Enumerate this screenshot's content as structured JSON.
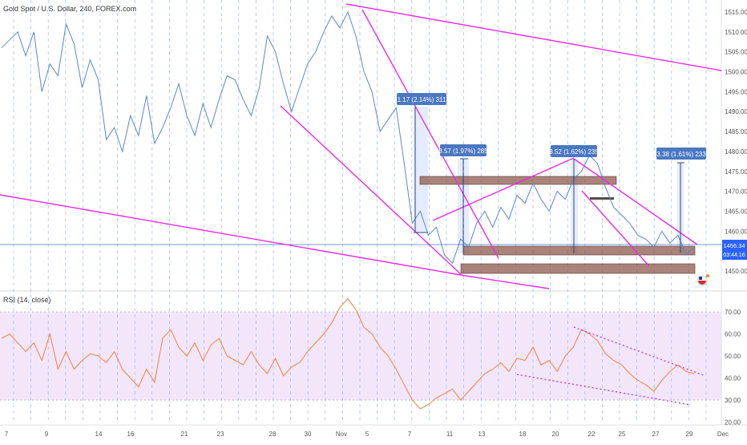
{
  "chart_data": {
    "type": "line",
    "title": "Gold Spot / U.S. Dollar, 240, FOREX.com",
    "price_panel": {
      "y_ticks": [
        "1515.00",
        "1510.00",
        "1505.00",
        "1500.00",
        "1495.00",
        "1490.00",
        "1485.00",
        "1480.00",
        "1475.00",
        "1470.00",
        "1465.00",
        "1460.00",
        "1455.00",
        "1450.00"
      ],
      "ylim": [
        1448,
        1517
      ],
      "current_price": "1456.34",
      "countdown": "03:44:16",
      "series": [
        {
          "values": [
            1506,
            1508,
            1510,
            1504,
            1510,
            1495,
            1502,
            1499,
            1512,
            1507,
            1496,
            1503,
            1498,
            1483,
            1486,
            1480,
            1489,
            1484,
            1494,
            1482,
            1486,
            1491,
            1497,
            1489,
            1484,
            1492,
            1486,
            1493,
            1499,
            1498,
            1493,
            1489,
            1496,
            1509,
            1505,
            1497,
            1490,
            1496,
            1502,
            1505,
            1510,
            1514,
            1511,
            1515,
            1509,
            1500,
            1495,
            1485,
            1488,
            1491,
            1477,
            1462,
            1465,
            1459,
            1461,
            1454,
            1452,
            1458,
            1456,
            1462,
            1465,
            1461,
            1466,
            1463,
            1469,
            1467,
            1472,
            1468,
            1465,
            1470,
            1468,
            1473,
            1475,
            1479,
            1477,
            1471,
            1466,
            1464,
            1462,
            1459,
            1458,
            1456,
            1460,
            1457,
            1459,
            1454,
            1456
          ]
        }
      ],
      "measurements": [
        "31.17 (2.14%) 3117",
        "28.57 (1.97%) 2857",
        "23.52 (1.62%) 2352",
        "23.38 (1.61%) 2338"
      ]
    },
    "rsi_panel": {
      "label": "RSI (14, close)",
      "y_ticks": [
        "70.00",
        "60.00",
        "50.00",
        "40.00",
        "30.00",
        "20.00"
      ],
      "ylim": [
        18,
        78
      ],
      "series": [
        {
          "values": [
            58,
            60,
            56,
            52,
            56,
            48,
            60,
            44,
            52,
            44,
            48,
            51,
            50,
            47,
            52,
            44,
            40,
            36,
            44,
            38,
            58,
            62,
            54,
            50,
            56,
            48,
            55,
            58,
            50,
            48,
            46,
            52,
            46,
            42,
            49,
            41,
            45,
            47,
            52,
            56,
            60,
            65,
            72,
            76,
            71,
            63,
            60,
            54,
            50,
            44,
            37,
            30,
            26,
            28,
            31,
            33,
            35,
            30,
            34,
            38,
            42,
            44,
            47,
            43,
            49,
            48,
            54,
            46,
            48,
            43,
            50,
            54,
            62,
            60,
            57,
            51,
            48,
            46,
            42,
            39,
            37,
            34,
            39,
            43,
            46,
            43,
            42
          ]
        }
      ]
    },
    "x_ticks": [
      "7",
      "9",
      "14",
      "16",
      "21",
      "23",
      "28",
      "30",
      "Nov",
      "5",
      "7",
      "11",
      "13",
      "18",
      "20",
      "22",
      "25",
      "27",
      "29",
      "Dec"
    ]
  }
}
